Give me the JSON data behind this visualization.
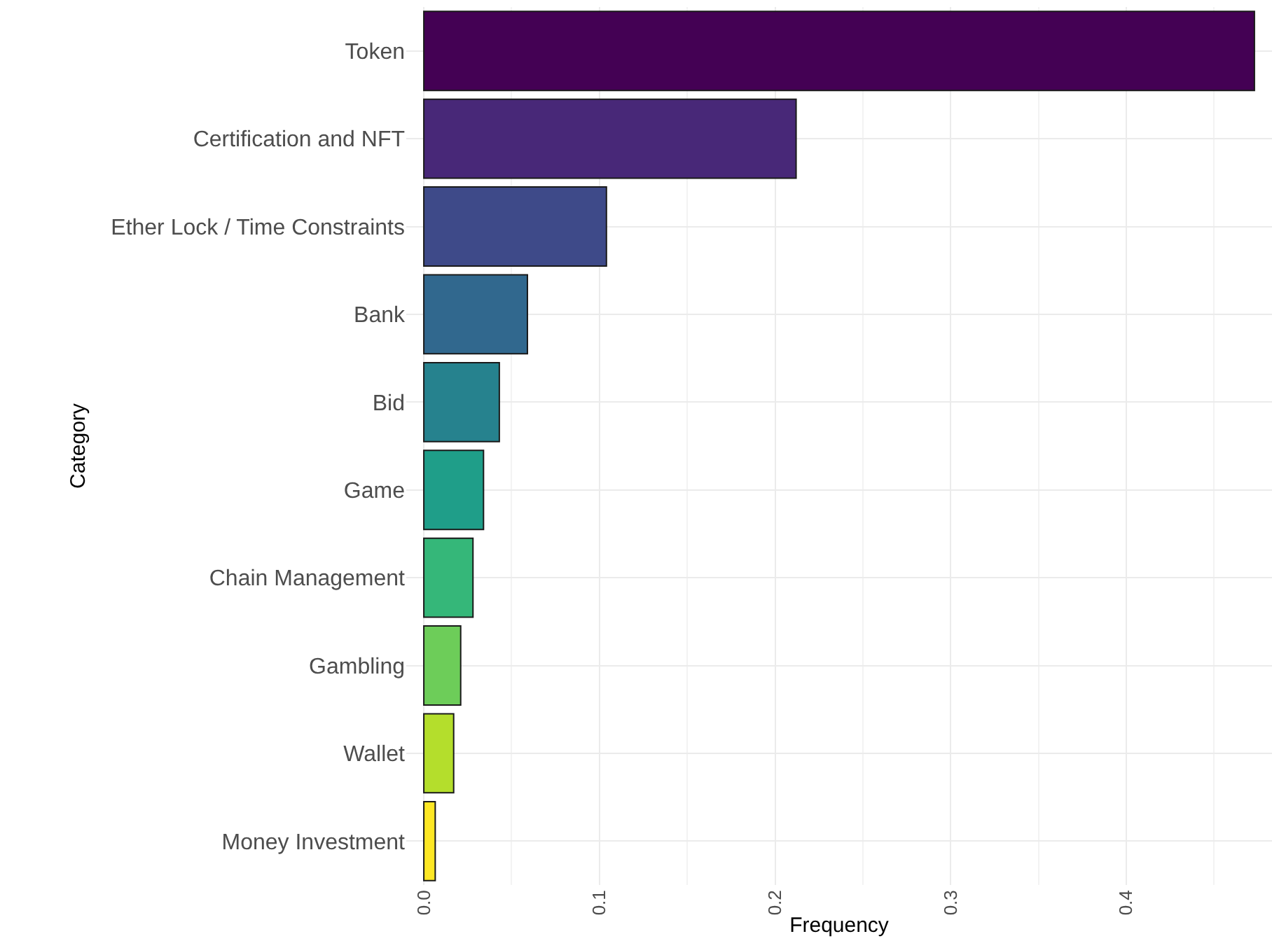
{
  "chart_data": {
    "type": "bar",
    "orientation": "horizontal",
    "xlabel": "Frequency",
    "ylabel": "Category",
    "categories": [
      "Token",
      "Certification and NFT",
      "Ether Lock / Time Constraints",
      "Bank",
      "Bid",
      "Game",
      "Chain Management",
      "Gambling",
      "Wallet",
      "Money Investment"
    ],
    "values": [
      0.473,
      0.212,
      0.104,
      0.059,
      0.043,
      0.034,
      0.028,
      0.021,
      0.017,
      0.0065
    ],
    "colors": [
      "#440154",
      "#482878",
      "#3e4a89",
      "#31688e",
      "#26828e",
      "#1f9e89",
      "#35b779",
      "#6dcd59",
      "#b4de2c",
      "#fde725"
    ],
    "xlim": [
      -0.01,
      0.483
    ],
    "xticks": [
      {
        "value": 0,
        "label": "0.0"
      },
      0.1,
      0.2,
      0.3,
      0.4
    ],
    "grid": true
  }
}
